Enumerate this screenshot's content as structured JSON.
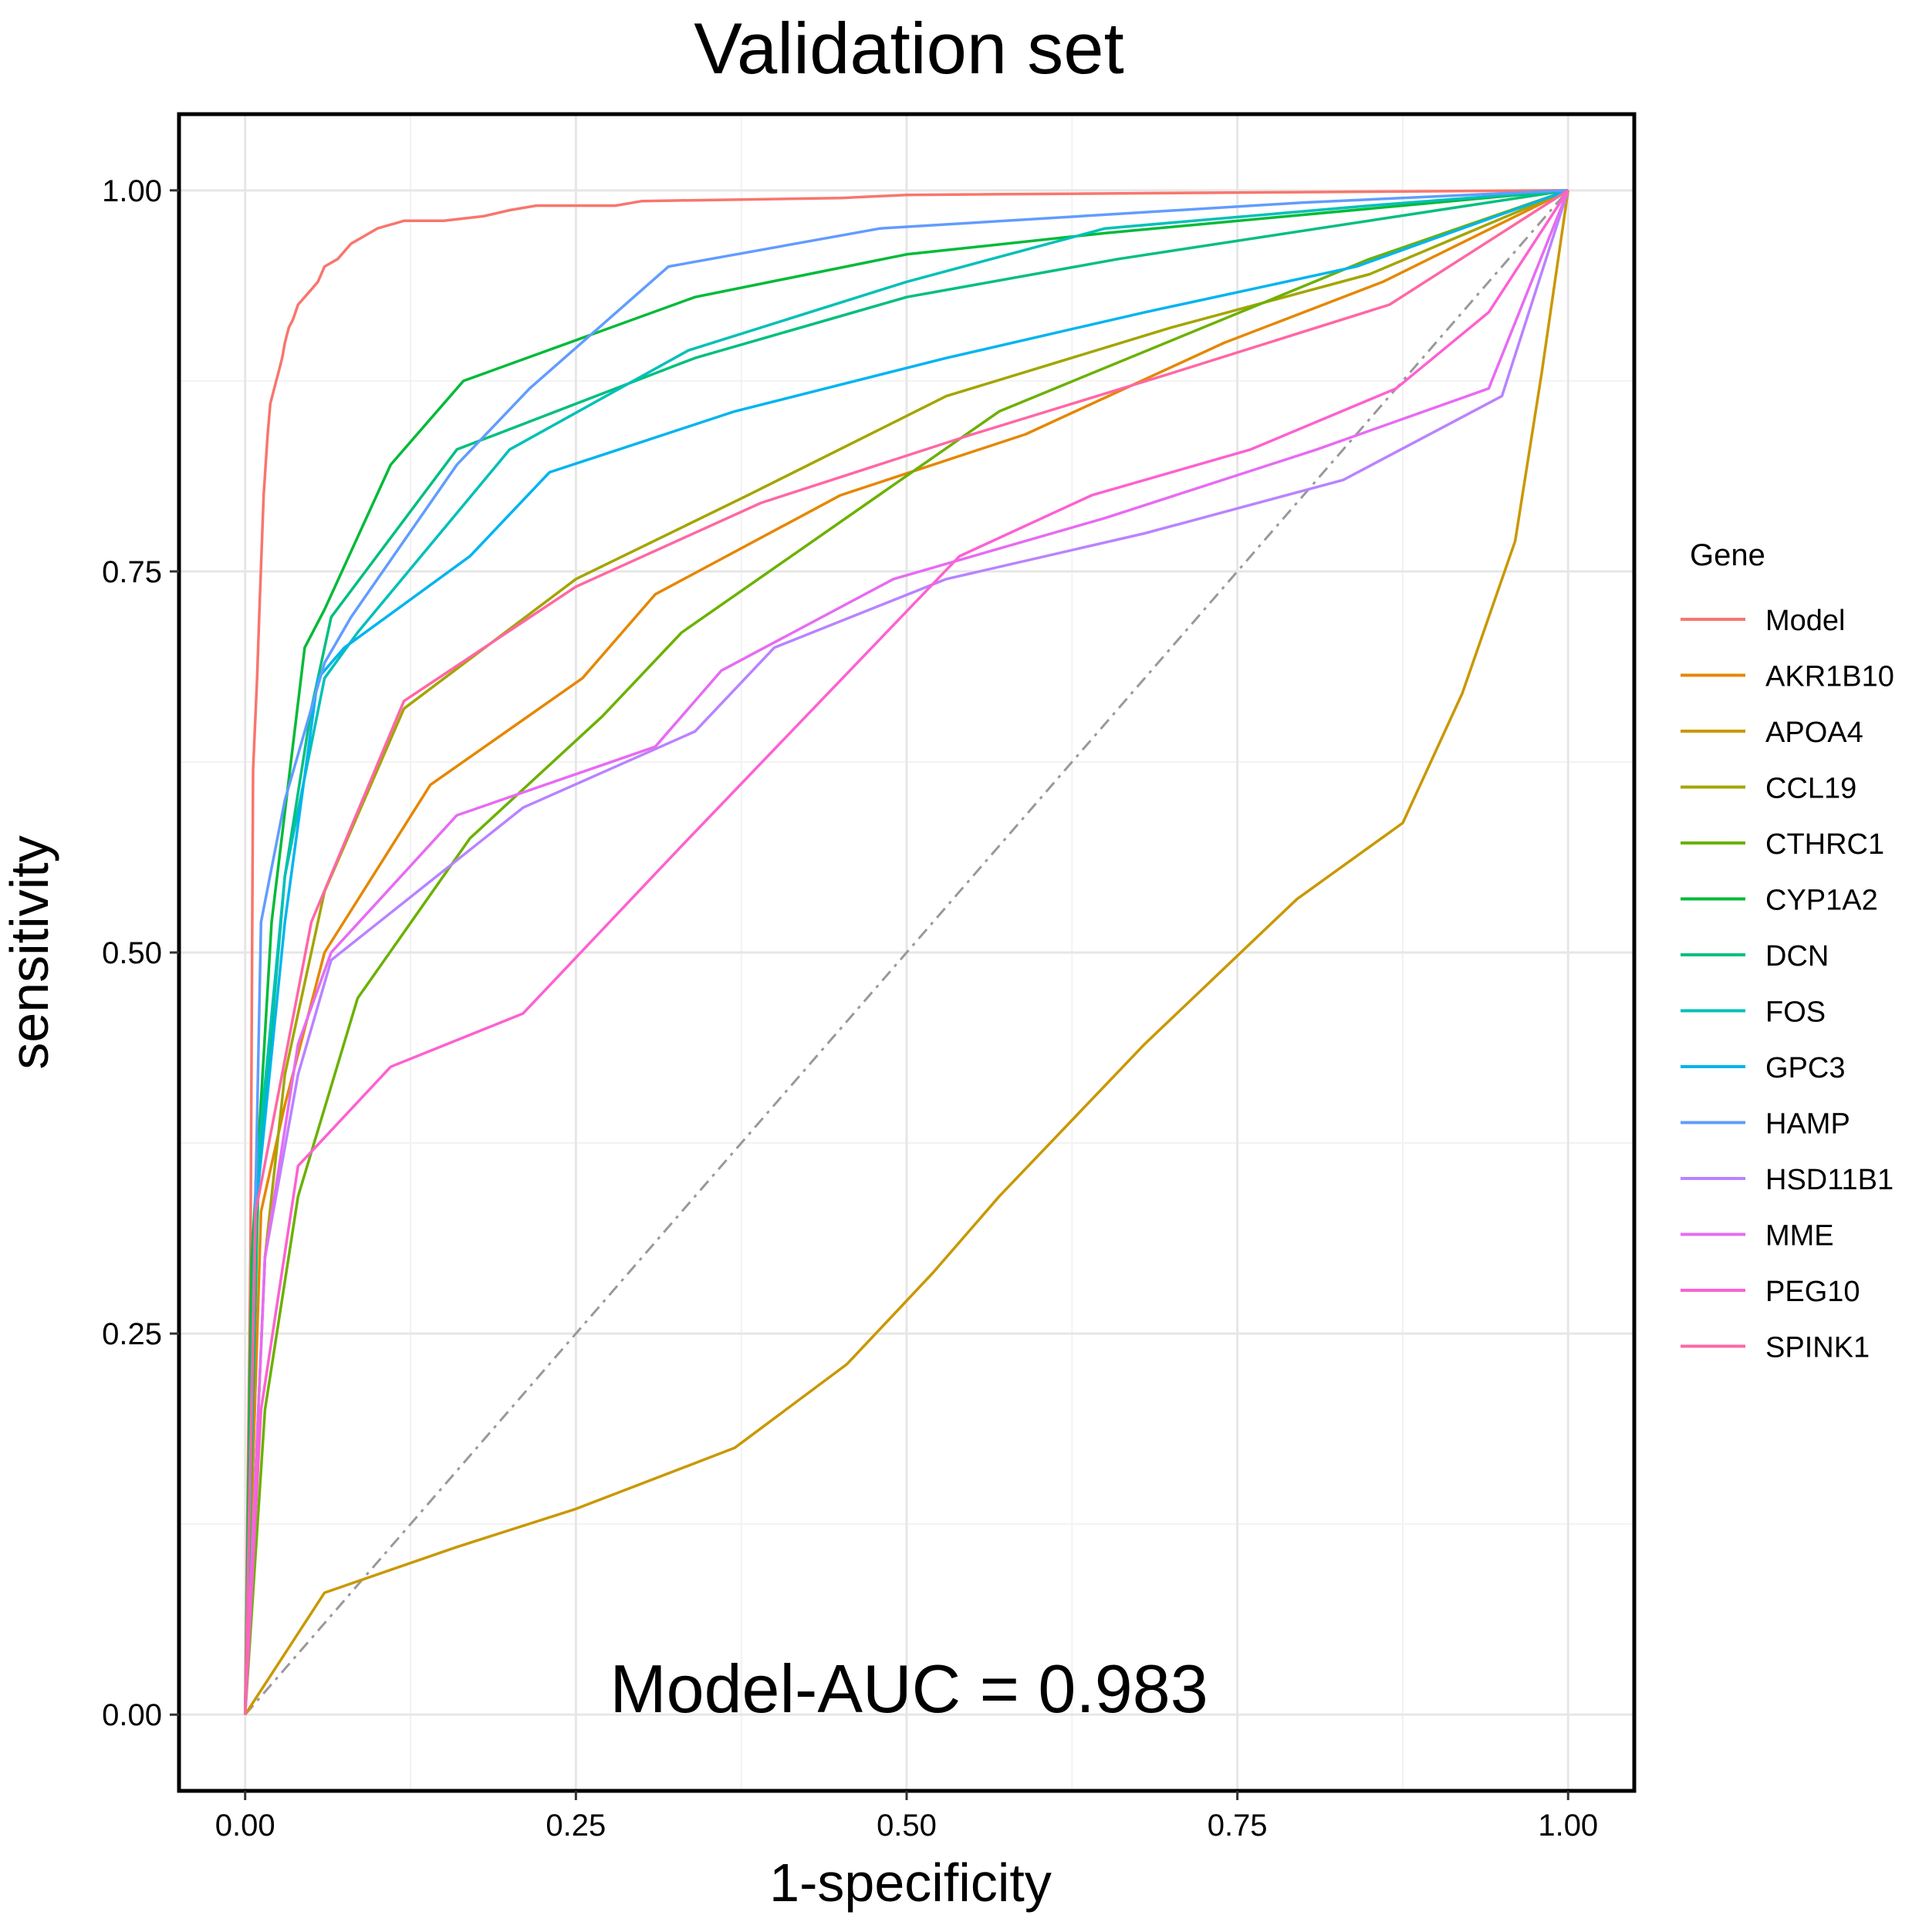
{
  "chart_data": {
    "type": "line",
    "title": "Validation set",
    "xlabel": "1-specificity",
    "ylabel": "sensitivity",
    "xlim": [
      -0.05,
      1.05
    ],
    "ylim": [
      -0.05,
      1.05
    ],
    "xticks": [
      0,
      0.25,
      0.5,
      0.75,
      1
    ],
    "yticks": [
      0,
      0.25,
      0.5,
      0.75,
      1
    ],
    "xtick_labels": [
      "0.00",
      "0.25",
      "0.50",
      "0.75",
      "1.00"
    ],
    "ytick_labels": [
      "0.00",
      "0.25",
      "0.50",
      "0.75",
      "1.00"
    ],
    "grid": true,
    "legend": {
      "title": "Gene",
      "position": "right"
    },
    "annotation": "Model-AUC =  0.983",
    "reference_line": {
      "points": [
        [
          0,
          0
        ],
        [
          1,
          1
        ]
      ],
      "style": "dashdot",
      "color": "#999999"
    },
    "series": [
      {
        "name": "Model",
        "color": "#F8766D",
        "points": [
          [
            0,
            0
          ],
          [
            0.004,
            0.3
          ],
          [
            0.006,
            0.62
          ],
          [
            0.009,
            0.68
          ],
          [
            0.011,
            0.73
          ],
          [
            0.014,
            0.8
          ],
          [
            0.017,
            0.84
          ],
          [
            0.019,
            0.86
          ],
          [
            0.022,
            0.87
          ],
          [
            0.025,
            0.88
          ],
          [
            0.028,
            0.89
          ],
          [
            0.03,
            0.9
          ],
          [
            0.033,
            0.91
          ],
          [
            0.036,
            0.915
          ],
          [
            0.04,
            0.925
          ],
          [
            0.045,
            0.93
          ],
          [
            0.05,
            0.935
          ],
          [
            0.055,
            0.94
          ],
          [
            0.06,
            0.95
          ],
          [
            0.07,
            0.955
          ],
          [
            0.08,
            0.965
          ],
          [
            0.09,
            0.97
          ],
          [
            0.1,
            0.975
          ],
          [
            0.12,
            0.98
          ],
          [
            0.15,
            0.98
          ],
          [
            0.18,
            0.983
          ],
          [
            0.2,
            0.987
          ],
          [
            0.22,
            0.99
          ],
          [
            0.28,
            0.99
          ],
          [
            0.3,
            0.993
          ],
          [
            0.45,
            0.995
          ],
          [
            0.5,
            0.997
          ],
          [
            1,
            1
          ]
        ]
      },
      {
        "name": "AKR1B10",
        "color": "#E58700",
        "points": [
          [
            0,
            0
          ],
          [
            0.012,
            0.33
          ],
          [
            0.03,
            0.4
          ],
          [
            0.06,
            0.5
          ],
          [
            0.14,
            0.61
          ],
          [
            0.255,
            0.68
          ],
          [
            0.31,
            0.735
          ],
          [
            0.45,
            0.8
          ],
          [
            0.59,
            0.84
          ],
          [
            0.74,
            0.9
          ],
          [
            0.86,
            0.94
          ],
          [
            1,
            1
          ]
        ]
      },
      {
        "name": "APOA4",
        "color": "#C99800",
        "points": [
          [
            0,
            0
          ],
          [
            0.06,
            0.08
          ],
          [
            0.16,
            0.11
          ],
          [
            0.25,
            0.135
          ],
          [
            0.37,
            0.175
          ],
          [
            0.455,
            0.23
          ],
          [
            0.52,
            0.29
          ],
          [
            0.57,
            0.34
          ],
          [
            0.68,
            0.44
          ],
          [
            0.795,
            0.535
          ],
          [
            0.875,
            0.585
          ],
          [
            0.92,
            0.67
          ],
          [
            0.96,
            0.77
          ],
          [
            0.98,
            0.88
          ],
          [
            1,
            1
          ]
        ]
      },
      {
        "name": "CCL19",
        "color": "#A3A500",
        "points": [
          [
            0,
            0
          ],
          [
            0.015,
            0.3
          ],
          [
            0.03,
            0.42
          ],
          [
            0.06,
            0.54
          ],
          [
            0.12,
            0.66
          ],
          [
            0.25,
            0.745
          ],
          [
            0.38,
            0.8
          ],
          [
            0.53,
            0.865
          ],
          [
            0.7,
            0.91
          ],
          [
            0.85,
            0.945
          ],
          [
            1,
            1
          ]
        ]
      },
      {
        "name": "CTHRC1",
        "color": "#6BB100",
        "points": [
          [
            0,
            0
          ],
          [
            0.015,
            0.2
          ],
          [
            0.04,
            0.34
          ],
          [
            0.085,
            0.47
          ],
          [
            0.17,
            0.575
          ],
          [
            0.27,
            0.655
          ],
          [
            0.33,
            0.71
          ],
          [
            0.57,
            0.855
          ],
          [
            0.85,
            0.955
          ],
          [
            1,
            1
          ]
        ]
      },
      {
        "name": "CYP1A2",
        "color": "#00BA38",
        "points": [
          [
            0,
            0
          ],
          [
            0.005,
            0.3
          ],
          [
            0.02,
            0.52
          ],
          [
            0.045,
            0.7
          ],
          [
            0.06,
            0.725
          ],
          [
            0.11,
            0.82
          ],
          [
            0.165,
            0.875
          ],
          [
            0.34,
            0.93
          ],
          [
            0.5,
            0.958
          ],
          [
            0.65,
            0.972
          ],
          [
            1,
            1
          ]
        ]
      },
      {
        "name": "DCN",
        "color": "#00BF7D",
        "points": [
          [
            0,
            0
          ],
          [
            0.01,
            0.35
          ],
          [
            0.03,
            0.55
          ],
          [
            0.05,
            0.66
          ],
          [
            0.065,
            0.72
          ],
          [
            0.16,
            0.83
          ],
          [
            0.34,
            0.89
          ],
          [
            0.5,
            0.93
          ],
          [
            0.66,
            0.955
          ],
          [
            1,
            1
          ]
        ]
      },
      {
        "name": "FOS",
        "color": "#00C0B8",
        "points": [
          [
            0,
            0
          ],
          [
            0.008,
            0.35
          ],
          [
            0.03,
            0.55
          ],
          [
            0.06,
            0.68
          ],
          [
            0.085,
            0.71
          ],
          [
            0.2,
            0.83
          ],
          [
            0.335,
            0.895
          ],
          [
            0.5,
            0.94
          ],
          [
            0.65,
            0.975
          ],
          [
            0.85,
            0.99
          ],
          [
            1,
            1
          ]
        ]
      },
      {
        "name": "GPC3",
        "color": "#00B4EF",
        "points": [
          [
            0,
            0
          ],
          [
            0.008,
            0.33
          ],
          [
            0.03,
            0.52
          ],
          [
            0.055,
            0.68
          ],
          [
            0.075,
            0.7
          ],
          [
            0.17,
            0.76
          ],
          [
            0.23,
            0.815
          ],
          [
            0.37,
            0.855
          ],
          [
            0.53,
            0.89
          ],
          [
            0.68,
            0.92
          ],
          [
            0.84,
            0.95
          ],
          [
            1,
            1
          ]
        ]
      },
      {
        "name": "HAMP",
        "color": "#619CFF",
        "points": [
          [
            0,
            0
          ],
          [
            0.012,
            0.52
          ],
          [
            0.03,
            0.6
          ],
          [
            0.06,
            0.69
          ],
          [
            0.08,
            0.72
          ],
          [
            0.16,
            0.82
          ],
          [
            0.215,
            0.87
          ],
          [
            0.32,
            0.95
          ],
          [
            0.48,
            0.975
          ],
          [
            0.8,
            0.992
          ],
          [
            1,
            1
          ]
        ]
      },
      {
        "name": "HSD11B1",
        "color": "#B983FF",
        "points": [
          [
            0,
            0
          ],
          [
            0.015,
            0.3
          ],
          [
            0.04,
            0.42
          ],
          [
            0.065,
            0.495
          ],
          [
            0.21,
            0.595
          ],
          [
            0.34,
            0.645
          ],
          [
            0.4,
            0.7
          ],
          [
            0.53,
            0.745
          ],
          [
            0.68,
            0.775
          ],
          [
            0.83,
            0.81
          ],
          [
            0.95,
            0.865
          ],
          [
            1,
            1
          ]
        ]
      },
      {
        "name": "MME",
        "color": "#E76BF3",
        "points": [
          [
            0,
            0
          ],
          [
            0.015,
            0.3
          ],
          [
            0.04,
            0.44
          ],
          [
            0.065,
            0.5
          ],
          [
            0.16,
            0.59
          ],
          [
            0.31,
            0.635
          ],
          [
            0.36,
            0.685
          ],
          [
            0.49,
            0.745
          ],
          [
            0.65,
            0.785
          ],
          [
            0.81,
            0.83
          ],
          [
            0.94,
            0.87
          ],
          [
            1,
            1
          ]
        ]
      },
      {
        "name": "PEG10",
        "color": "#FD61D1",
        "points": [
          [
            0,
            0
          ],
          [
            0.012,
            0.2
          ],
          [
            0.04,
            0.36
          ],
          [
            0.11,
            0.425
          ],
          [
            0.21,
            0.46
          ],
          [
            0.33,
            0.57
          ],
          [
            0.54,
            0.76
          ],
          [
            0.64,
            0.8
          ],
          [
            0.76,
            0.83
          ],
          [
            0.87,
            0.87
          ],
          [
            0.94,
            0.92
          ],
          [
            1,
            1
          ]
        ]
      },
      {
        "name": "SPINK1",
        "color": "#FF67A4",
        "points": [
          [
            0,
            0
          ],
          [
            0.008,
            0.33
          ],
          [
            0.05,
            0.52
          ],
          [
            0.12,
            0.665
          ],
          [
            0.25,
            0.74
          ],
          [
            0.39,
            0.795
          ],
          [
            0.55,
            0.84
          ],
          [
            0.7,
            0.88
          ],
          [
            0.865,
            0.925
          ],
          [
            1,
            1
          ]
        ]
      }
    ]
  }
}
